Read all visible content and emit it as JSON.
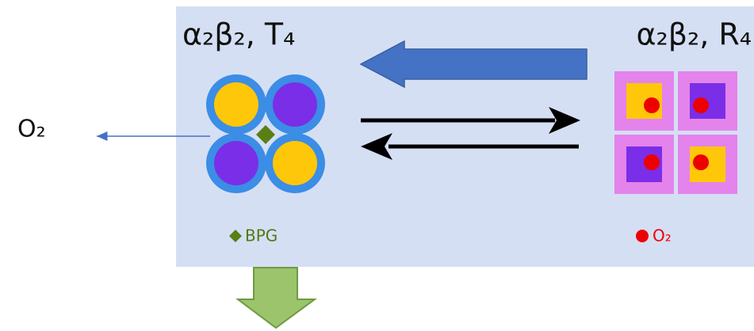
{
  "states": [
    {
      "label": "α₂β₂, T₄"
    },
    {
      "label": "α₂β₂, R₄"
    }
  ],
  "released": {
    "label": "O₂"
  },
  "legend": [
    {
      "label": "BPG"
    },
    {
      "label": "O₂"
    }
  ]
}
